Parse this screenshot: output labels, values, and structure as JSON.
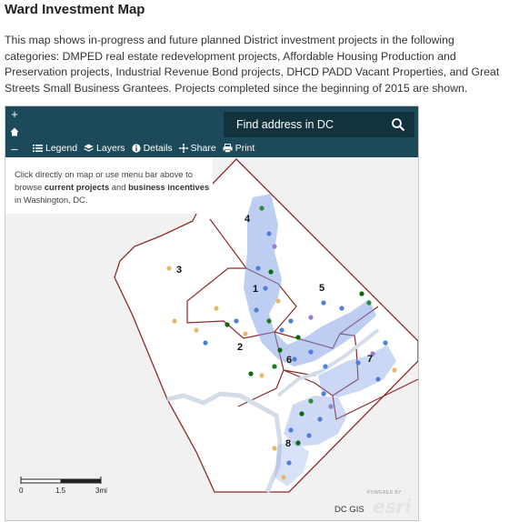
{
  "page": {
    "title": "Ward Investment Map",
    "intro": "This map shows in-progress and future planned District investment projects in the following categories: DMPED real estate redevelopment projects, Affordable Housing Production and Preservation projects, Industrial Revenue Bond projects, DHCD PADD Vacant Properties, and Great Streets Small Business Grantees. Projects completed since the beginning of 2015 are shown."
  },
  "map": {
    "zoom_in": "+",
    "zoom_out": "–",
    "search_placeholder": "Find address in DC",
    "toolbar": {
      "legend": "Legend",
      "layers": "Layers",
      "details": "Details",
      "share": "Share",
      "print": "Print"
    },
    "info": {
      "prefix": "Click directly on map or use menu bar above to browse ",
      "bold1": "current projects",
      "mid": " and ",
      "bold2": "business incentives",
      "suffix": " in Washington, DC."
    },
    "wards": [
      "1",
      "2",
      "3",
      "4",
      "5",
      "6",
      "7",
      "8"
    ],
    "scale_labels": [
      "0",
      "1.5",
      "3mi"
    ],
    "attribution": "DC GIS",
    "esri_powered": "POWERED BY",
    "esri": "esri",
    "colors": {
      "panel": "#1c4a5a",
      "search": "#12323d",
      "boundary": "#8b2a2a",
      "land": "#ffffff",
      "projects": "#4f7fd6",
      "density": "#7e9ee6"
    }
  }
}
